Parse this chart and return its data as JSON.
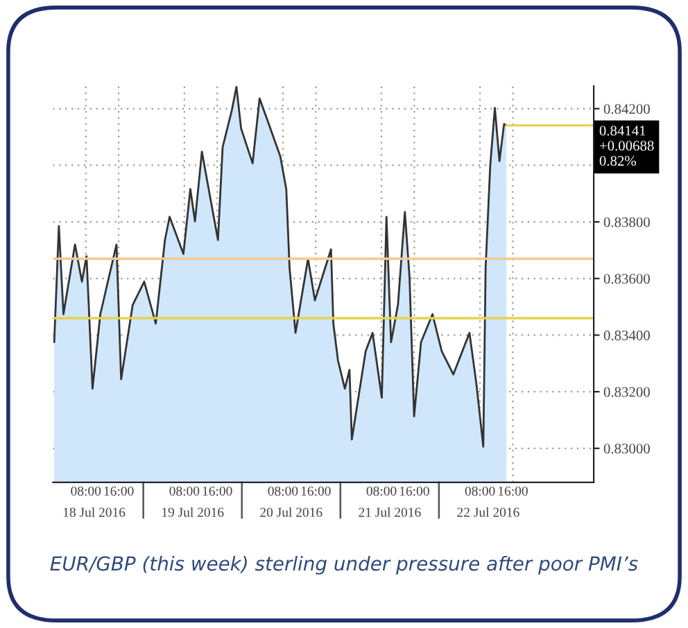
{
  "chart_data": {
    "type": "area",
    "title": "EUR/GBP (this week) sterling under pressure after poor PMI’s",
    "x": [
      "2016-07-18T00:18",
      "2016-07-18T01:26",
      "2016-07-18T02:33",
      "2016-07-18T05:22",
      "2016-07-18T07:03",
      "2016-07-18T08:10",
      "2016-07-18T09:38",
      "2016-07-18T11:32",
      "2016-07-18T15:28",
      "2016-07-18T16:36",
      "2016-07-18T19:25",
      "2016-07-18T22:13",
      "2016-07-19T01:02",
      "2016-07-19T03:16",
      "2016-07-19T04:24",
      "2016-07-19T07:46",
      "2016-07-19T09:27",
      "2016-07-19T10:35",
      "2016-07-19T12:16",
      "2016-07-19T16:11",
      "2016-07-19T17:19",
      "2016-07-19T19:34",
      "2016-07-19T20:41",
      "2016-07-19T21:49",
      "2016-07-20T00:37",
      "2016-07-20T02:19",
      "2016-07-20T04:33",
      "2016-07-20T07:22",
      "2016-07-20T08:49",
      "2016-07-20T09:37",
      "2016-07-20T11:04",
      "2016-07-20T14:07",
      "2016-07-20T15:47",
      "2016-07-20T19:43",
      "2016-07-20T20:17",
      "2016-07-20T21:25",
      "2016-07-20T23:05",
      "2016-07-21T00:13",
      "2016-07-21T00:47",
      "2016-07-21T04:09",
      "2016-07-21T05:50",
      "2016-07-21T08:05",
      "2016-07-21T09:13",
      "2016-07-21T10:20",
      "2016-07-21T12:01",
      "2016-07-21T13:42",
      "2016-07-21T14:50",
      "2016-07-21T15:57",
      "2016-07-21T17:38",
      "2016-07-21T20:26",
      "2016-07-21T22:41",
      "2016-07-22T01:30",
      "2016-07-22T05:26",
      "2016-07-22T07:07",
      "2016-07-22T08:48",
      "2016-07-22T09:22",
      "2016-07-22T10:29",
      "2016-07-22T11:37",
      "2016-07-22T12:44",
      "2016-07-22T13:52",
      "2016-07-22T14:25"
    ],
    "series": [
      {
        "color": "#cfe6fb",
        "values": [
          0.83375,
          0.83785,
          0.83474,
          0.8372,
          0.83589,
          0.83679,
          0.83211,
          0.83474,
          0.8372,
          0.83244,
          0.83507,
          0.83589,
          0.83441,
          0.83736,
          0.83818,
          0.83687,
          0.83916,
          0.83802,
          0.84048,
          0.83736,
          0.84064,
          0.84195,
          0.84277,
          0.8413,
          0.84007,
          0.84236,
          0.84146,
          0.84031,
          0.83916,
          0.83638,
          0.83408,
          0.8367,
          0.83523,
          0.83703,
          0.83441,
          0.8331,
          0.83211,
          0.83277,
          0.83031,
          0.83343,
          0.83408,
          0.83179,
          0.83818,
          0.83375,
          0.83507,
          0.83835,
          0.83605,
          0.83113,
          0.83375,
          0.83474,
          0.83343,
          0.83261,
          0.83408,
          0.83228,
          0.83006,
          0.83638,
          0.83998,
          0.84203,
          0.84015,
          0.84146,
          0.84141
        ]
      }
    ],
    "xlim": [
      "2016-07-18T00:00",
      "2016-07-23T11:42"
    ],
    "xticks": [
      {
        "value": "2016-07-18T08:00",
        "label": "08:00"
      },
      {
        "value": "2016-07-18T16:00",
        "label": "16:00"
      },
      {
        "value": "2016-07-19T08:00",
        "label": "08:00"
      },
      {
        "value": "2016-07-19T16:00",
        "label": "16:00"
      },
      {
        "value": "2016-07-20T08:00",
        "label": "08:00"
      },
      {
        "value": "2016-07-20T16:00",
        "label": "16:00"
      },
      {
        "value": "2016-07-21T08:00",
        "label": "08:00"
      },
      {
        "value": "2016-07-21T16:00",
        "label": "16:00"
      },
      {
        "value": "2016-07-22T08:00",
        "label": "08:00"
      },
      {
        "value": "2016-07-22T16:00",
        "label": "16:00"
      }
    ],
    "x2lim": [
      "2016-07-18T00:00",
      "2016-07-23T11:42"
    ],
    "x2ticks": [
      {
        "value": "2016-07-18T10:00",
        "label": "18 Jul 2016"
      },
      {
        "value": "2016-07-19T10:00",
        "label": "19 Jul 2016"
      },
      {
        "value": "2016-07-20T10:00",
        "label": "20 Jul 2016"
      },
      {
        "value": "2016-07-21T10:00",
        "label": "21 Jul 2016"
      },
      {
        "value": "2016-07-22T10:00",
        "label": "22 Jul 2016"
      }
    ],
    "ylim": [
      0.8288,
      0.8428
    ],
    "yticks": [
      {
        "value": 0.83,
        "label": "0.83000"
      },
      {
        "value": 0.832,
        "label": "0.83200"
      },
      {
        "value": 0.834,
        "label": "0.83400"
      },
      {
        "value": 0.836,
        "label": "0.83600"
      },
      {
        "value": 0.838,
        "label": "0.83800"
      },
      {
        "value": 0.84,
        "label": null
      },
      {
        "value": 0.842,
        "label": "0.84200"
      }
    ],
    "ref_lines": [
      {
        "axis": "y",
        "value": 0.8367,
        "color": "#f5c98f"
      },
      {
        "axis": "y",
        "value": 0.8346,
        "color": "#e6d34f"
      },
      {
        "axis": "y",
        "value": 0.84141,
        "label": "0.84141",
        "color": "#e6d34f"
      }
    ],
    "annotations": [
      "+0.00688",
      "0.82%"
    ],
    "grid": true
  }
}
